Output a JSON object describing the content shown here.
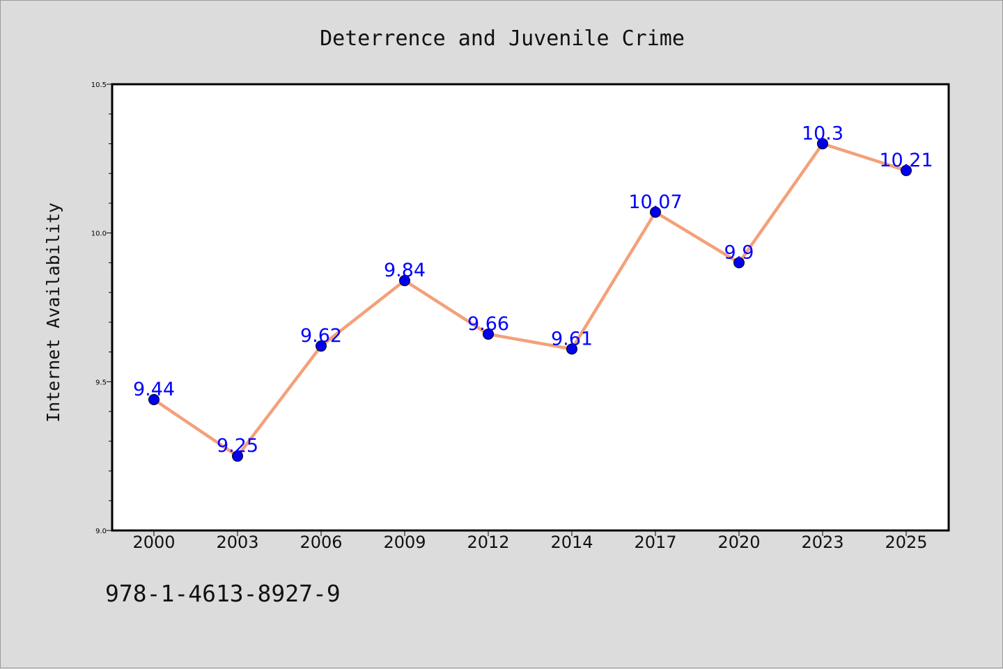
{
  "chart_data": {
    "type": "line",
    "title": "Deterrence and Juvenile Crime",
    "xlabel": "",
    "ylabel": "Internet Availability",
    "categories": [
      "2000",
      "2003",
      "2006",
      "2009",
      "2012",
      "2014",
      "2017",
      "2020",
      "2023",
      "2025"
    ],
    "series": [
      {
        "values": [
          9.44,
          9.25,
          9.62,
          9.84,
          9.66,
          9.61,
          10.07,
          9.9,
          10.3,
          10.21
        ]
      }
    ],
    "data_labels": [
      "9.44",
      "9.25",
      "9.62",
      "9.84",
      "9.66",
      "9.61",
      "10.07",
      "9.9",
      "10.3",
      "10.21"
    ],
    "ylim": [
      9.0,
      10.5
    ],
    "yticks": [
      "9.0",
      "9.5",
      "10.0",
      "10.5"
    ],
    "grid": false,
    "colors": {
      "line": "#f4a07a",
      "marker": "#0000ee",
      "label": "#0000ff",
      "background": "#dcdcdc",
      "plot_background": "#ffffff"
    }
  },
  "footer": {
    "code": "978-1-4613-8927-9"
  }
}
